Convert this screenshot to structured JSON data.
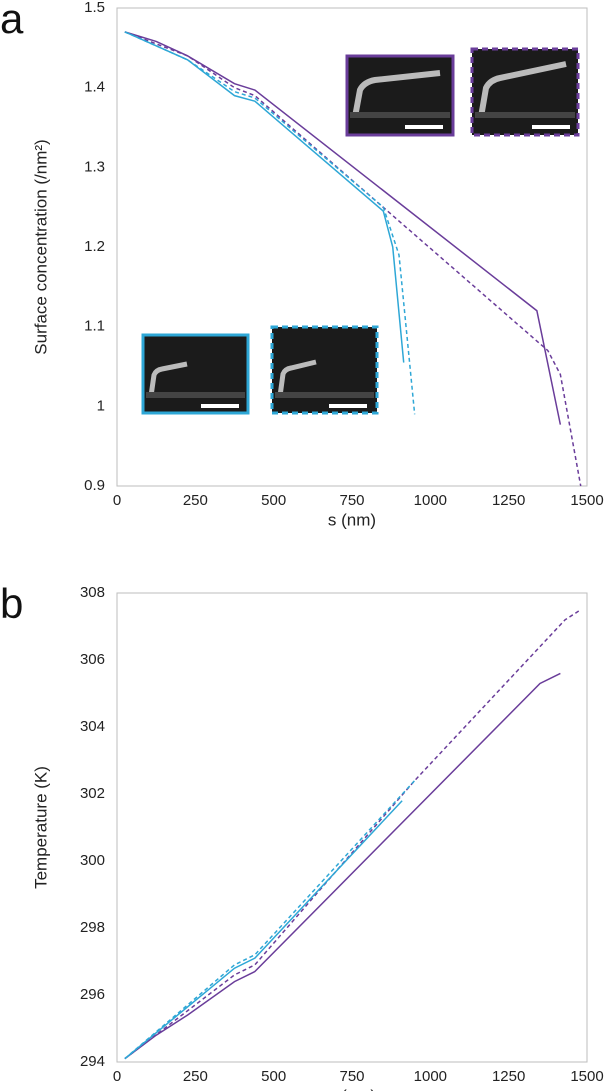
{
  "chart_data": [
    {
      "type": "line",
      "panel_label": "a",
      "x_label": "s (nm)",
      "y_label": "Surface concentration (/nm²)",
      "xlim": [
        0,
        1500
      ],
      "xticks": [
        0,
        250,
        500,
        750,
        1000,
        1250,
        1500
      ],
      "ylim": [
        0.9,
        1.5
      ],
      "yticks": [
        0.9,
        1,
        1.1,
        1.2,
        1.3,
        1.4,
        1.5
      ],
      "grid": false,
      "series": [
        {
          "color": "#6a3d9a",
          "dashed": false,
          "x": [
            25,
            125,
            225,
            375,
            440,
            1340,
            1415
          ],
          "values": [
            1.47,
            1.458,
            1.44,
            1.405,
            1.397,
            1.12,
            0.977
          ]
        },
        {
          "color": "#6a3d9a",
          "dashed": true,
          "x": [
            25,
            225,
            375,
            440,
            1375,
            1415,
            1480
          ],
          "values": [
            1.47,
            1.44,
            1.4,
            1.39,
            1.07,
            1.04,
            0.9
          ]
        },
        {
          "color": "#2ea7d6",
          "dashed": false,
          "x": [
            25,
            225,
            375,
            440,
            850,
            880,
            915
          ],
          "values": [
            1.47,
            1.435,
            1.39,
            1.383,
            1.245,
            1.2,
            1.055
          ]
        },
        {
          "color": "#2ea7d6",
          "dashed": true,
          "x": [
            25,
            225,
            375,
            440,
            850,
            900,
            950
          ],
          "values": [
            1.47,
            1.435,
            1.395,
            1.387,
            1.25,
            1.19,
            0.99
          ]
        }
      ]
    },
    {
      "type": "line",
      "panel_label": "b",
      "x_label": "s (nm)",
      "y_label": "Temperature (K)",
      "xlim": [
        0,
        1500
      ],
      "xticks": [
        0,
        250,
        500,
        750,
        1000,
        1250,
        1500
      ],
      "ylim": [
        294,
        308
      ],
      "yticks": [
        294,
        296,
        298,
        300,
        302,
        304,
        306,
        308
      ],
      "grid": false,
      "series": [
        {
          "color": "#6a3d9a",
          "dashed": false,
          "x": [
            25,
            125,
            225,
            375,
            440,
            1350,
            1415
          ],
          "values": [
            294.1,
            294.8,
            295.4,
            296.4,
            296.7,
            305.3,
            305.6
          ]
        },
        {
          "color": "#6a3d9a",
          "dashed": true,
          "x": [
            25,
            375,
            440,
            950,
            1430,
            1480
          ],
          "values": [
            294.1,
            296.6,
            296.9,
            302.4,
            307.2,
            307.5
          ]
        },
        {
          "color": "#2ea7d6",
          "dashed": false,
          "x": [
            25,
            375,
            440,
            910
          ],
          "values": [
            294.1,
            296.8,
            297.1,
            301.8
          ]
        },
        {
          "color": "#2ea7d6",
          "dashed": true,
          "x": [
            25,
            375,
            440,
            950
          ],
          "values": [
            294.1,
            296.9,
            297.2,
            302.4
          ]
        }
      ]
    }
  ]
}
